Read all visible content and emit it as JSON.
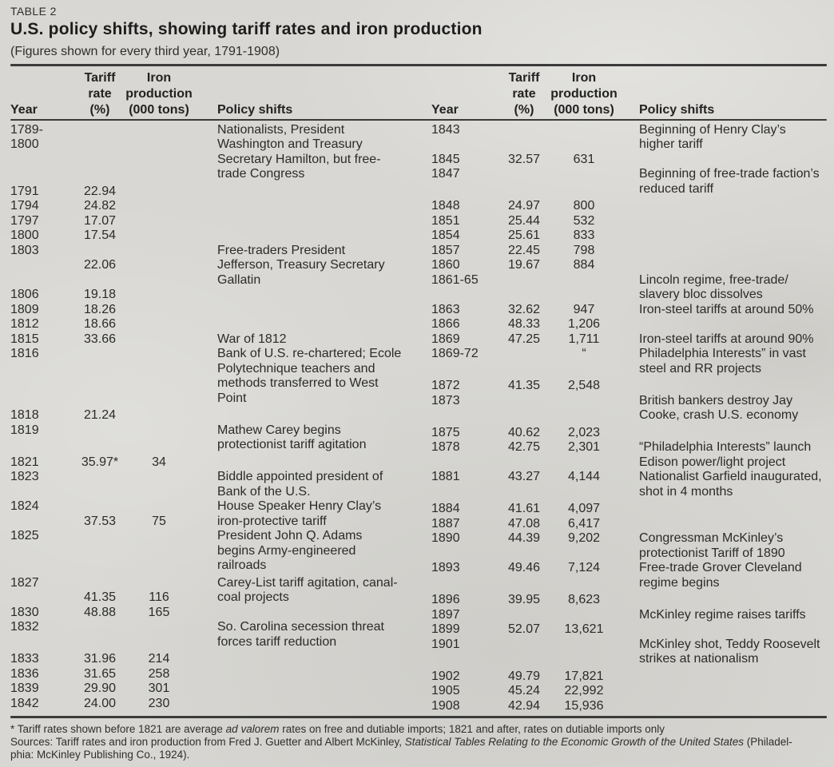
{
  "colors": {
    "paper": "#d8d7d3",
    "ink": "#2b2b2b",
    "rule": "#3b3b3b"
  },
  "header": {
    "table_label": "TABLE 2",
    "title": "U.S. policy shifts, showing tariff rates and iron production",
    "subtitle": "(Figures shown for every third year, 1791-1908)"
  },
  "columns": {
    "year": "Year",
    "tariff_line1": "Tariff",
    "tariff_line2": "rate",
    "tariff_line3": "(%)",
    "iron_line1": "Iron",
    "iron_line2": "production",
    "iron_line3": "(000 tons)",
    "policy": "Policy shifts"
  },
  "left_table": {
    "rows": [
      {
        "y": "1789-",
        "p": "Nationalists, President"
      },
      {
        "y": "1800",
        "p": "Washington and Treasury"
      },
      {
        "p": "Secretary Hamilton, but free-"
      },
      {
        "p": "trade Congress"
      },
      {
        "y": "1791",
        "t": "22.94",
        "gap": true
      },
      {
        "y": "1794",
        "t": "24.82"
      },
      {
        "y": "1797",
        "t": "17.07"
      },
      {
        "y": "1800",
        "t": "17.54"
      },
      {
        "y": "1803",
        "p": "Free-traders President"
      },
      {
        "t": "22.06",
        "p": "Jefferson, Treasury Secretary"
      },
      {
        "p": "Gallatin"
      },
      {
        "y": "1806",
        "t": "19.18"
      },
      {
        "y": "1809",
        "t": "18.26"
      },
      {
        "y": "1812",
        "t": "18.66"
      },
      {
        "y": "1815",
        "t": "33.66",
        "p": "War of 1812"
      },
      {
        "y": "1816",
        "p": "Bank of U.S. re-chartered; Ecole"
      },
      {
        "p": "Polytechnique teachers and"
      },
      {
        "p": "methods transferred to West"
      },
      {
        "p": "Point"
      },
      {
        "y": "1818",
        "t": "21.24",
        "gap": true
      },
      {
        "y": "1819",
        "p": "Mathew Carey begins"
      },
      {
        "p": "protectionist tariff agitation"
      },
      {
        "y": "1821",
        "t": "35.97*",
        "i": "34",
        "gap": true
      },
      {
        "y": "1823",
        "p": "Biddle appointed president of"
      },
      {
        "p": "Bank of the U.S."
      },
      {
        "y": "1824",
        "p": "House Speaker Henry Clay’s"
      },
      {
        "t": "37.53",
        "i": "75",
        "p": "iron-protective tariff"
      },
      {
        "y": "1825",
        "p": "President John Q. Adams"
      },
      {
        "p": "begins Army-engineered"
      },
      {
        "p": "railroads"
      },
      {
        "y": "1827",
        "p": "Carey-List tariff agitation, canal-",
        "gap": true
      },
      {
        "t": "41.35",
        "i": "116",
        "p": "coal projects"
      },
      {
        "y": "1830",
        "t": "48.88",
        "i": "165"
      },
      {
        "y": "1832",
        "p": "So. Carolina secession threat"
      },
      {
        "p": "forces tariff reduction"
      },
      {
        "y": "1833",
        "t": "31.96",
        "i": "214",
        "gap": true
      },
      {
        "y": "1836",
        "t": "31.65",
        "i": "258"
      },
      {
        "y": "1839",
        "t": "29.90",
        "i": "301"
      },
      {
        "y": "1842",
        "t": "24.00",
        "i": "230"
      }
    ]
  },
  "right_table": {
    "rows": [
      {
        "y": "1843",
        "p": "Beginning of Henry Clay’s"
      },
      {
        "p": "higher tariff"
      },
      {
        "y": "1845",
        "t": "32.57",
        "i": "631"
      },
      {
        "y": "1847",
        "p": "Beginning of free-trade faction’s"
      },
      {
        "p": "reduced tariff"
      },
      {
        "y": "1848",
        "t": "24.97",
        "i": "800",
        "gap": true
      },
      {
        "y": "1851",
        "t": "25.44",
        "i": "532"
      },
      {
        "y": "1854",
        "t": "25.61",
        "i": "833"
      },
      {
        "y": "1857",
        "t": "22.45",
        "i": "798"
      },
      {
        "y": "1860",
        "t": "19.67",
        "i": "884"
      },
      {
        "y": "1861-65",
        "p": "Lincoln regime, free-trade/"
      },
      {
        "p": "slavery bloc dissolves"
      },
      {
        "y": "1863",
        "t": "32.62",
        "i": "947",
        "p": "Iron-steel tariffs at around 50%"
      },
      {
        "y": "1866",
        "t": "48.33",
        "i": "1,206"
      },
      {
        "y": "1869",
        "t": "47.25",
        "i": "1,711",
        "p": "Iron-steel tariffs at around 90%"
      },
      {
        "y": "1869-72",
        "i": "“",
        "p": "Philadelphia Interests” in vast"
      },
      {
        "p": "steel and RR projects"
      },
      {
        "y": "1872",
        "t": "41.35",
        "i": "2,548",
        "gap": true
      },
      {
        "y": "1873",
        "p": "British bankers destroy Jay"
      },
      {
        "p": "Cooke, crash U.S. economy"
      },
      {
        "y": "1875",
        "t": "40.62",
        "i": "2,023",
        "gap": true
      },
      {
        "y": "1878",
        "t": "42.75",
        "i": "2,301",
        "p": "“Philadelphia Interests” launch"
      },
      {
        "p": "Edison power/light project"
      },
      {
        "y": "1881",
        "t": "43.27",
        "i": "4,144",
        "p": "Nationalist Garfield inaugurated,"
      },
      {
        "p": "shot in 4 months"
      },
      {
        "y": "1884",
        "t": "41.61",
        "i": "4,097",
        "gap": true
      },
      {
        "y": "1887",
        "t": "47.08",
        "i": "6,417"
      },
      {
        "y": "1890",
        "t": "44.39",
        "i": "9,202",
        "p": "Congressman McKinley’s"
      },
      {
        "p": "protectionist Tariff of 1890"
      },
      {
        "y": "1893",
        "t": "49.46",
        "i": "7,124",
        "p": "Free-trade Grover Cleveland"
      },
      {
        "p": "regime begins"
      },
      {
        "y": "1896",
        "t": "39.95",
        "i": "8,623",
        "gap": true
      },
      {
        "y": "1897",
        "p": "McKinley regime raises tariffs"
      },
      {
        "y": "1899",
        "t": "52.07",
        "i": "13,621"
      },
      {
        "y": "1901",
        "p": "McKinley shot, Teddy Roosevelt"
      },
      {
        "p": "strikes at nationalism"
      },
      {
        "y": "1902",
        "t": "49.79",
        "i": "17,821",
        "gap": true
      },
      {
        "y": "1905",
        "t": "45.24",
        "i": "22,992"
      },
      {
        "y": "1908",
        "t": "42.94",
        "i": "15,936"
      }
    ]
  },
  "footnotes": {
    "line1": [
      {
        "t": "* Tariff rates shown before 1821 are average "
      },
      {
        "t": "ad valorem",
        "it": true
      },
      {
        "t": " rates on free and dutiable imports; 1821 and after, rates on dutiable imports only"
      }
    ],
    "line2": [
      {
        "t": "Sources: Tariff rates and iron production from Fred J. Guetter and Albert McKinley, "
      },
      {
        "t": "Statistical Tables Relating to the Economic Growth of the United States",
        "it": true
      },
      {
        "t": " (Philadel-"
      }
    ],
    "line3": [
      {
        "t": "phia: McKinley Publishing Co., 1924)."
      }
    ]
  }
}
